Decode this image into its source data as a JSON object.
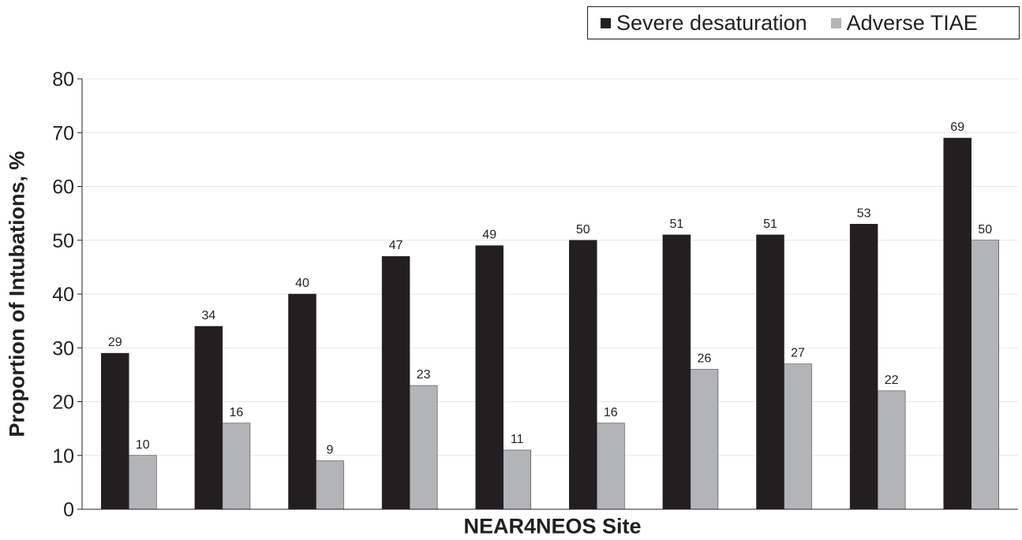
{
  "chart_data": {
    "type": "bar",
    "categories": [
      "",
      "",
      "",
      "",
      "",
      "",
      "",
      "",
      "",
      ""
    ],
    "series": [
      {
        "name": "Severe desaturation",
        "values": [
          29,
          34,
          40,
          47,
          49,
          50,
          51,
          51,
          53,
          69
        ],
        "color": "#231f20"
      },
      {
        "name": "Adverse TIAE",
        "values": [
          10,
          16,
          9,
          23,
          11,
          16,
          26,
          27,
          22,
          50
        ],
        "color": "#b3b4b7"
      }
    ],
    "xlabel": "NEAR4NEOS Site",
    "ylabel": "Proportion of Intubations, %",
    "ylim": [
      0,
      80
    ],
    "yticks": [
      0,
      10,
      20,
      30,
      40,
      50,
      60,
      70,
      80
    ],
    "grid": true,
    "legend_position": "top-right",
    "data_labels": true
  }
}
